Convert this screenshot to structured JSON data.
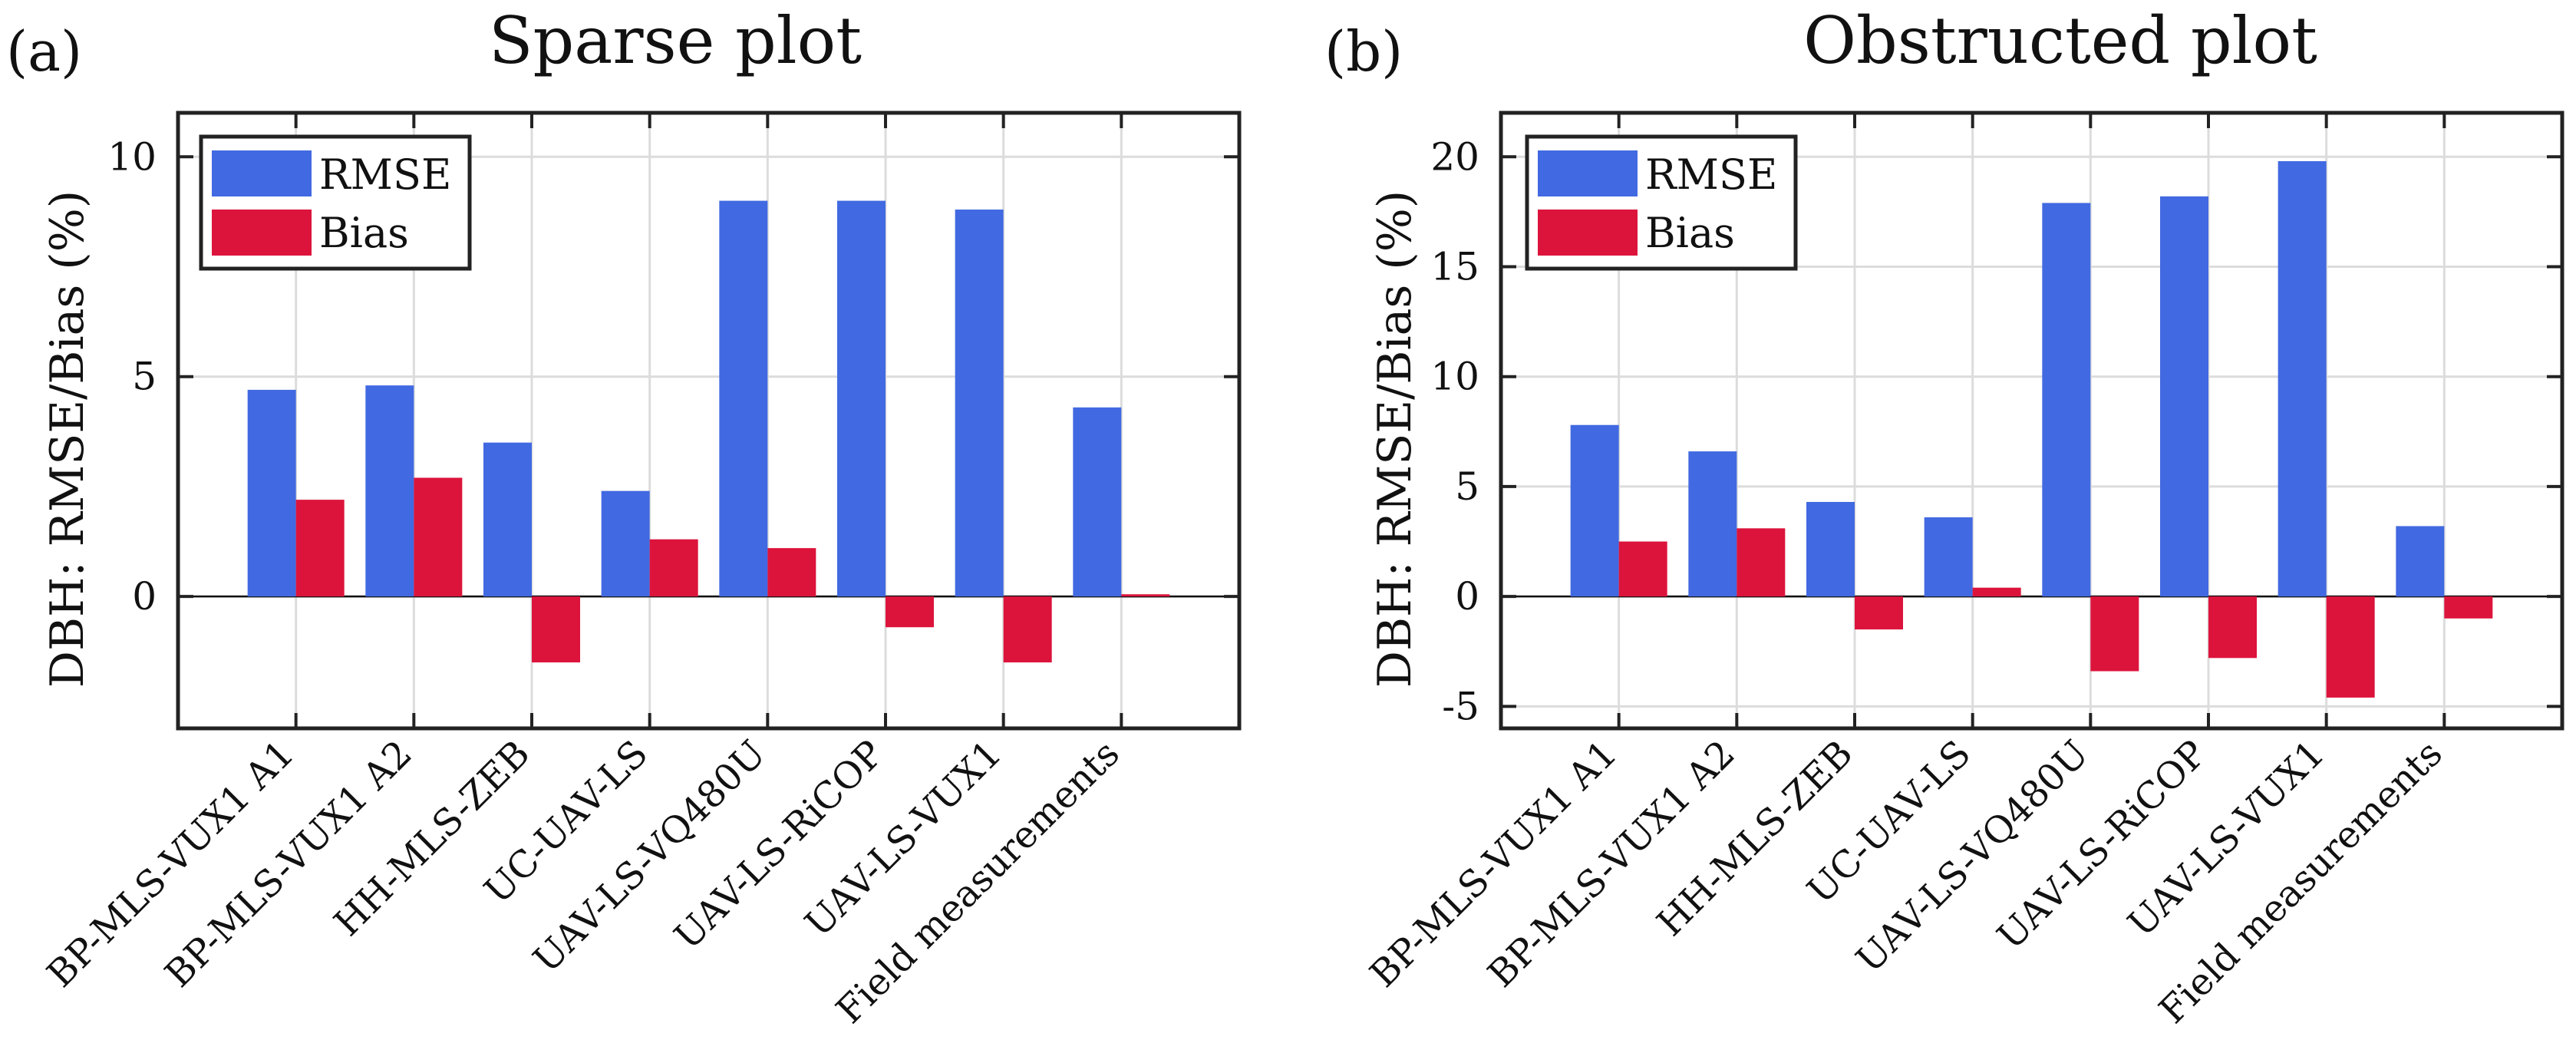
{
  "colors": {
    "rmse": "#4169e1",
    "bias": "#dc143c"
  },
  "chart_data": [
    {
      "type": "bar",
      "panel_label": "(a)",
      "title": "Sparse plot",
      "xlabel": "",
      "ylabel": "DBH: RMSE/Bias (%)",
      "ylim": [
        -3,
        11
      ],
      "yticks": [
        0,
        5,
        10
      ],
      "ytick_labels": [
        "0",
        "5",
        "10"
      ],
      "grid": true,
      "legend_position": "top-left",
      "categories": [
        "BP-MLS-VUX1 A1",
        "BP-MLS-VUX1 A2",
        "HH-MLS-ZEB",
        "UC-UAV-LS",
        "UAV-LS-VQ480U",
        "UAV-LS-RiCOP",
        "UAV-LS-VUX1",
        "Field measurements"
      ],
      "series": [
        {
          "name": "RMSE",
          "values": [
            4.7,
            4.8,
            3.5,
            2.4,
            9.0,
            9.0,
            8.8,
            4.3
          ]
        },
        {
          "name": "Bias",
          "values": [
            2.2,
            2.7,
            -1.5,
            1.3,
            1.1,
            -0.7,
            -1.5,
            0.05
          ]
        }
      ]
    },
    {
      "type": "bar",
      "panel_label": "(b)",
      "title": "Obstructed plot",
      "xlabel": "",
      "ylabel": "DBH: RMSE/Bias (%)",
      "ylim": [
        -6,
        22
      ],
      "yticks": [
        -5,
        0,
        5,
        10,
        15,
        20
      ],
      "ytick_labels": [
        "-5",
        "0",
        "5",
        "10",
        "15",
        "20"
      ],
      "grid": true,
      "legend_position": "top-left",
      "categories": [
        "BP-MLS-VUX1 A1",
        "BP-MLS-VUX1 A2",
        "HH-MLS-ZEB",
        "UC-UAV-LS",
        "UAV-LS-VQ480U",
        "UAV-LS-RiCOP",
        "UAV-LS-VUX1",
        "Field measurements"
      ],
      "series": [
        {
          "name": "RMSE",
          "values": [
            7.8,
            6.6,
            4.3,
            3.6,
            17.9,
            18.2,
            19.8,
            3.2
          ]
        },
        {
          "name": "Bias",
          "values": [
            2.5,
            3.1,
            -1.5,
            0.4,
            -3.4,
            -2.8,
            -4.6,
            -1.0
          ]
        }
      ]
    }
  ]
}
